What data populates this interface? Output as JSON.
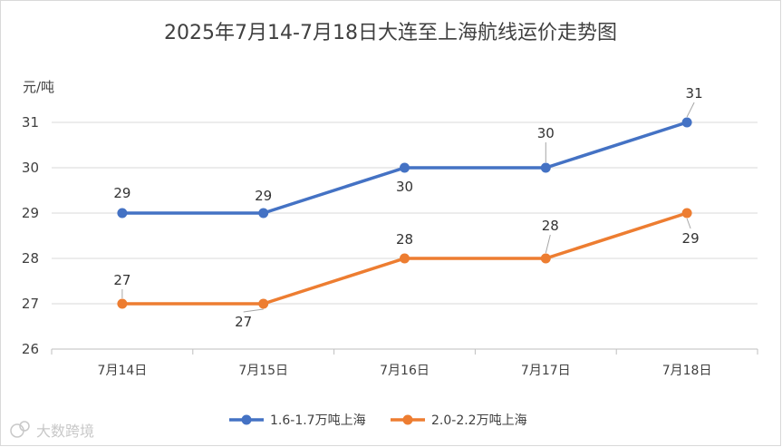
{
  "chart_data": {
    "type": "line",
    "title": "2025年7月14-7月18日大连至上海航线运价走势图",
    "ylabel": "元/吨",
    "xlabel": "",
    "categories": [
      "7月14日",
      "7月15日",
      "7月16日",
      "7月17日",
      "7月18日"
    ],
    "ylim": [
      26,
      31
    ],
    "yticks": [
      "26",
      "27",
      "28",
      "29",
      "30",
      "31"
    ],
    "grid": true,
    "legend_position": "bottom",
    "series": [
      {
        "name": "1.6-1.7万吨上海",
        "color": "#4472C4",
        "values": [
          29,
          29,
          30,
          30,
          31
        ]
      },
      {
        "name": "2.0-2.2万吨上海",
        "color": "#ED7D31",
        "values": [
          27,
          27,
          28,
          28,
          29
        ]
      }
    ]
  },
  "watermark": "大数跨境"
}
